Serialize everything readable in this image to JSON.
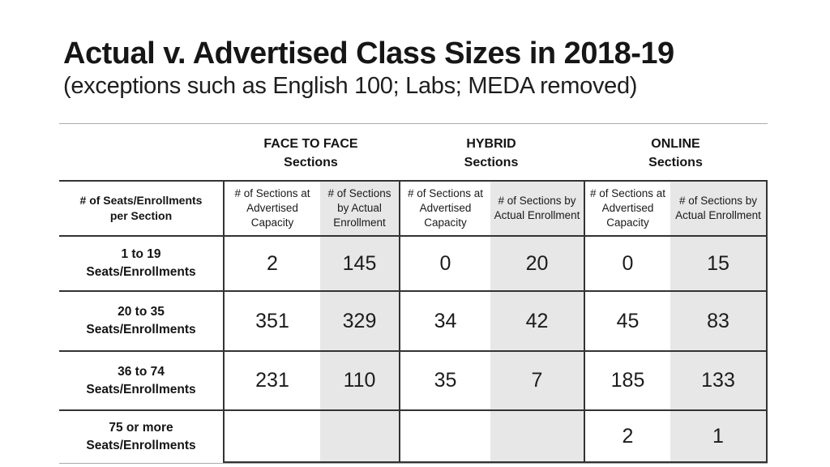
{
  "slide": {
    "title": "Actual v. Advertised Class Sizes in 2018-19",
    "subtitle": "(exceptions such as English 100; Labs; MEDA removed)"
  },
  "table": {
    "corner_header": "# of Seats/Enrollments\nper Section",
    "groups": [
      {
        "label": "FACE TO FACE\nSections"
      },
      {
        "label": "HYBRID\nSections"
      },
      {
        "label": "ONLINE\nSections"
      }
    ],
    "sub_headers": [
      "# of Sections at\nAdvertised\nCapacity",
      "# of Sections\nby Actual\nEnrollment",
      "# of Sections at\nAdvertised\nCapacity",
      "# of Sections by\nActual Enrollment",
      "# of Sections at\nAdvertised\nCapacity",
      "# of Sections by\nActual Enrollment"
    ],
    "rows": [
      {
        "label": "1 to 19\nSeats/Enrollments",
        "values": [
          "2",
          "145",
          "0",
          "20",
          "0",
          "15"
        ]
      },
      {
        "label": "20 to 35\nSeats/Enrollments",
        "values": [
          "351",
          "329",
          "34",
          "42",
          "45",
          "83"
        ]
      },
      {
        "label": "36 to 74\nSeats/Enrollments",
        "values": [
          "231",
          "110",
          "35",
          "7",
          "185",
          "133"
        ]
      },
      {
        "label": "75 or more\nSeats/Enrollments",
        "values": [
          "",
          "",
          "",
          "",
          "2",
          "1"
        ]
      }
    ]
  },
  "colors": {
    "shaded_cell": "#e7e7e7",
    "table_border": "#333333",
    "divider_line": "#ababab",
    "text": "#1b1b1b"
  }
}
